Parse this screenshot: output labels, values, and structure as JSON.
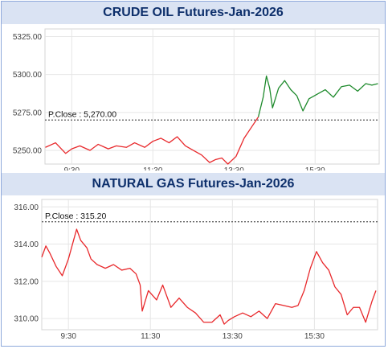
{
  "chart_data": [
    {
      "type": "line",
      "title": "CRUDE OIL Futures-Jan-2026",
      "ylim": [
        5241,
        5330
      ],
      "yticks": [
        5250,
        5275,
        5300,
        5325
      ],
      "ytick_labels": [
        "5250.00",
        "5275.00",
        "5300.00",
        "5325.00"
      ],
      "xlim": [
        8.84,
        17.08
      ],
      "xticks": [
        9.5,
        11.5,
        13.5,
        15.5
      ],
      "xtick_labels": [
        "9:30",
        "11:30",
        "13:30",
        "15:30"
      ],
      "grid": true,
      "reference_line": {
        "label": "P.Close : 5,270.00",
        "value": 5270
      },
      "colors": {
        "below": "#e8282b",
        "above": "#1e8a2c",
        "reference": "#555555",
        "grid": "#e6e6e6"
      },
      "series": [
        {
          "x": [
            8.85,
            9.1,
            9.35,
            9.5,
            9.7,
            9.95,
            10.15,
            10.4,
            10.6,
            10.85,
            11.05,
            11.3,
            11.5,
            11.7,
            11.9,
            12.1,
            12.3,
            12.5,
            12.7,
            12.9,
            13.05,
            13.2,
            13.35,
            13.55,
            13.75,
            13.95,
            14.1,
            14.22,
            14.3,
            14.38,
            14.45,
            14.52,
            14.6,
            14.75,
            14.9,
            15.05,
            15.2,
            15.35,
            15.55,
            15.75,
            15.95,
            16.15,
            16.35,
            16.55,
            16.75,
            16.9,
            17.05
          ],
          "values": [
            5252,
            5255,
            5248,
            5251,
            5253,
            5250,
            5254,
            5251,
            5253,
            5252,
            5255,
            5252,
            5256,
            5258,
            5255,
            5259,
            5253,
            5250,
            5247,
            5242,
            5244,
            5245,
            5241,
            5246,
            5258,
            5266,
            5272,
            5285,
            5299,
            5291,
            5278,
            5284,
            5291,
            5296,
            5290,
            5286,
            5276,
            5284,
            5287,
            5290,
            5285,
            5292,
            5293,
            5289,
            5294,
            5293,
            5294
          ]
        }
      ]
    },
    {
      "type": "line",
      "title": "NATURAL GAS Futures-Jan-2026",
      "ylim": [
        309.4,
        316.4
      ],
      "yticks": [
        310,
        312,
        314,
        316
      ],
      "ytick_labels": [
        "310.00",
        "312.00",
        "314.00",
        "316.00"
      ],
      "xlim": [
        8.85,
        17.04
      ],
      "xticks": [
        9.5,
        11.5,
        13.5,
        15.5
      ],
      "xtick_labels": [
        "9:30",
        "11:30",
        "13:30",
        "15:30"
      ],
      "grid": true,
      "reference_line": {
        "label": "P.Close : 315.20",
        "value": 315.2
      },
      "colors": {
        "line": "#e8282b",
        "reference": "#555555",
        "grid": "#e6e6e6"
      },
      "series": [
        {
          "x": [
            8.85,
            8.95,
            9.05,
            9.2,
            9.35,
            9.5,
            9.6,
            9.7,
            9.8,
            9.95,
            10.05,
            10.2,
            10.4,
            10.6,
            10.8,
            11.0,
            11.15,
            11.25,
            11.3,
            11.45,
            11.65,
            11.8,
            12.0,
            12.2,
            12.4,
            12.6,
            12.8,
            13.0,
            13.2,
            13.3,
            13.4,
            13.55,
            13.75,
            13.95,
            14.15,
            14.35,
            14.55,
            14.75,
            14.95,
            15.1,
            15.25,
            15.4,
            15.55,
            15.7,
            15.85,
            16.0,
            16.15,
            16.3,
            16.45,
            16.6,
            16.75,
            16.9,
            17.0
          ],
          "values": [
            313.3,
            313.9,
            313.5,
            312.8,
            312.3,
            313.2,
            314.0,
            314.8,
            314.2,
            313.8,
            313.2,
            312.9,
            312.7,
            312.9,
            312.6,
            312.7,
            312.4,
            311.8,
            310.4,
            311.5,
            311.0,
            311.8,
            310.6,
            311.1,
            310.6,
            310.3,
            309.8,
            309.8,
            310.2,
            309.7,
            309.9,
            310.1,
            310.3,
            310.1,
            310.4,
            310.0,
            310.8,
            310.7,
            310.6,
            310.7,
            311.5,
            312.7,
            313.6,
            313.0,
            312.6,
            311.7,
            311.3,
            310.2,
            310.6,
            310.6,
            309.8,
            310.9,
            311.5
          ]
        }
      ]
    }
  ]
}
